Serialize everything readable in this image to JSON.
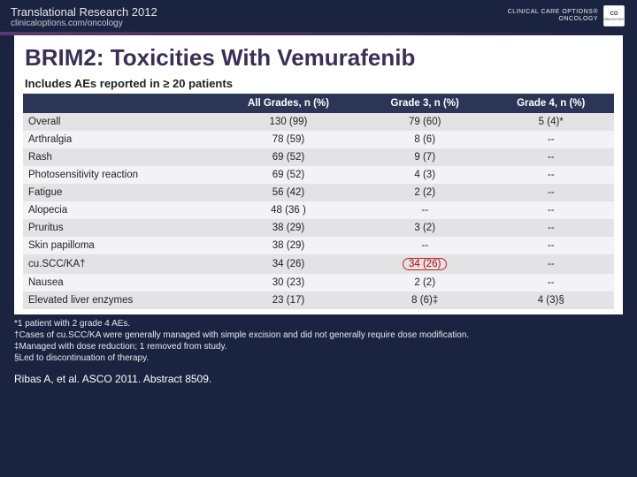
{
  "header": {
    "title": "Translational Research 2012",
    "subtitle": "clinicaloptions.com/oncology",
    "brand_line1": "CLINICAL CARE OPTIONS®",
    "brand_line2": "ONCOLOGY",
    "brand_badge_top": "CO",
    "brand_badge_bottom": "ONCOLOGY"
  },
  "slide": {
    "title": "BRIM2: Toxicities With Vemurafenib",
    "subtitle": "Includes AEs reported in ≥ 20 patients"
  },
  "table": {
    "headers": [
      "",
      "All Grades, n (%)",
      "Grade 3, n (%)",
      "Grade 4, n (%)"
    ],
    "rows": [
      {
        "label": "Overall",
        "c1": "130 (99)",
        "c2": "79 (60)",
        "c3": "5 (4)*",
        "alt": "dark",
        "hl": false
      },
      {
        "label": "Arthralgia",
        "c1": "78 (59)",
        "c2": "8 (6)",
        "c3": "--",
        "alt": "light",
        "hl": false
      },
      {
        "label": "Rash",
        "c1": "69 (52)",
        "c2": "9 (7)",
        "c3": "--",
        "alt": "dark",
        "hl": false
      },
      {
        "label": "Photosensitivity reaction",
        "c1": "69 (52)",
        "c2": "4 (3)",
        "c3": "--",
        "alt": "light",
        "hl": false
      },
      {
        "label": "Fatigue",
        "c1": "56 (42)",
        "c2": "2 (2)",
        "c3": "--",
        "alt": "dark",
        "hl": false
      },
      {
        "label": "Alopecia",
        "c1": "48 (36 )",
        "c2": "--",
        "c3": "--",
        "alt": "light",
        "hl": false
      },
      {
        "label": "Pruritus",
        "c1": "38 (29)",
        "c2": "3 (2)",
        "c3": "--",
        "alt": "dark",
        "hl": false
      },
      {
        "label": "Skin papilloma",
        "c1": "38 (29)",
        "c2": "--",
        "c3": "--",
        "alt": "light",
        "hl": false
      },
      {
        "label": "cu.SCC/KA†",
        "c1": "34 (26)",
        "c2": "34 (26)",
        "c3": "--",
        "alt": "dark",
        "hl": true
      },
      {
        "label": "Nausea",
        "c1": "30 (23)",
        "c2": "2 (2)",
        "c3": "--",
        "alt": "light",
        "hl": false
      },
      {
        "label": "Elevated liver enzymes",
        "c1": "23 (17)",
        "c2": "8 (6)‡",
        "c3": "4 (3)§",
        "alt": "dark",
        "hl": false
      }
    ]
  },
  "footnotes": {
    "f1": "*1 patient with 2 grade 4 AEs.",
    "f2": "†Cases of cu.SCC/KA were generally managed with simple excision and did not generally require dose modification.",
    "f3": "‡Managed with dose reduction; 1 removed from study.",
    "f4": "§Led to discontinuation of therapy."
  },
  "citation": "Ribas A, et al. ASCO 2011. Abstract 8509.",
  "colors": {
    "page_bg": "#1a2340",
    "title_color": "#3b2e58",
    "th_bg": "#2b3556",
    "row_dark": "#e3e3e6",
    "row_light": "#f3f3f5",
    "highlight_border": "#c22"
  }
}
